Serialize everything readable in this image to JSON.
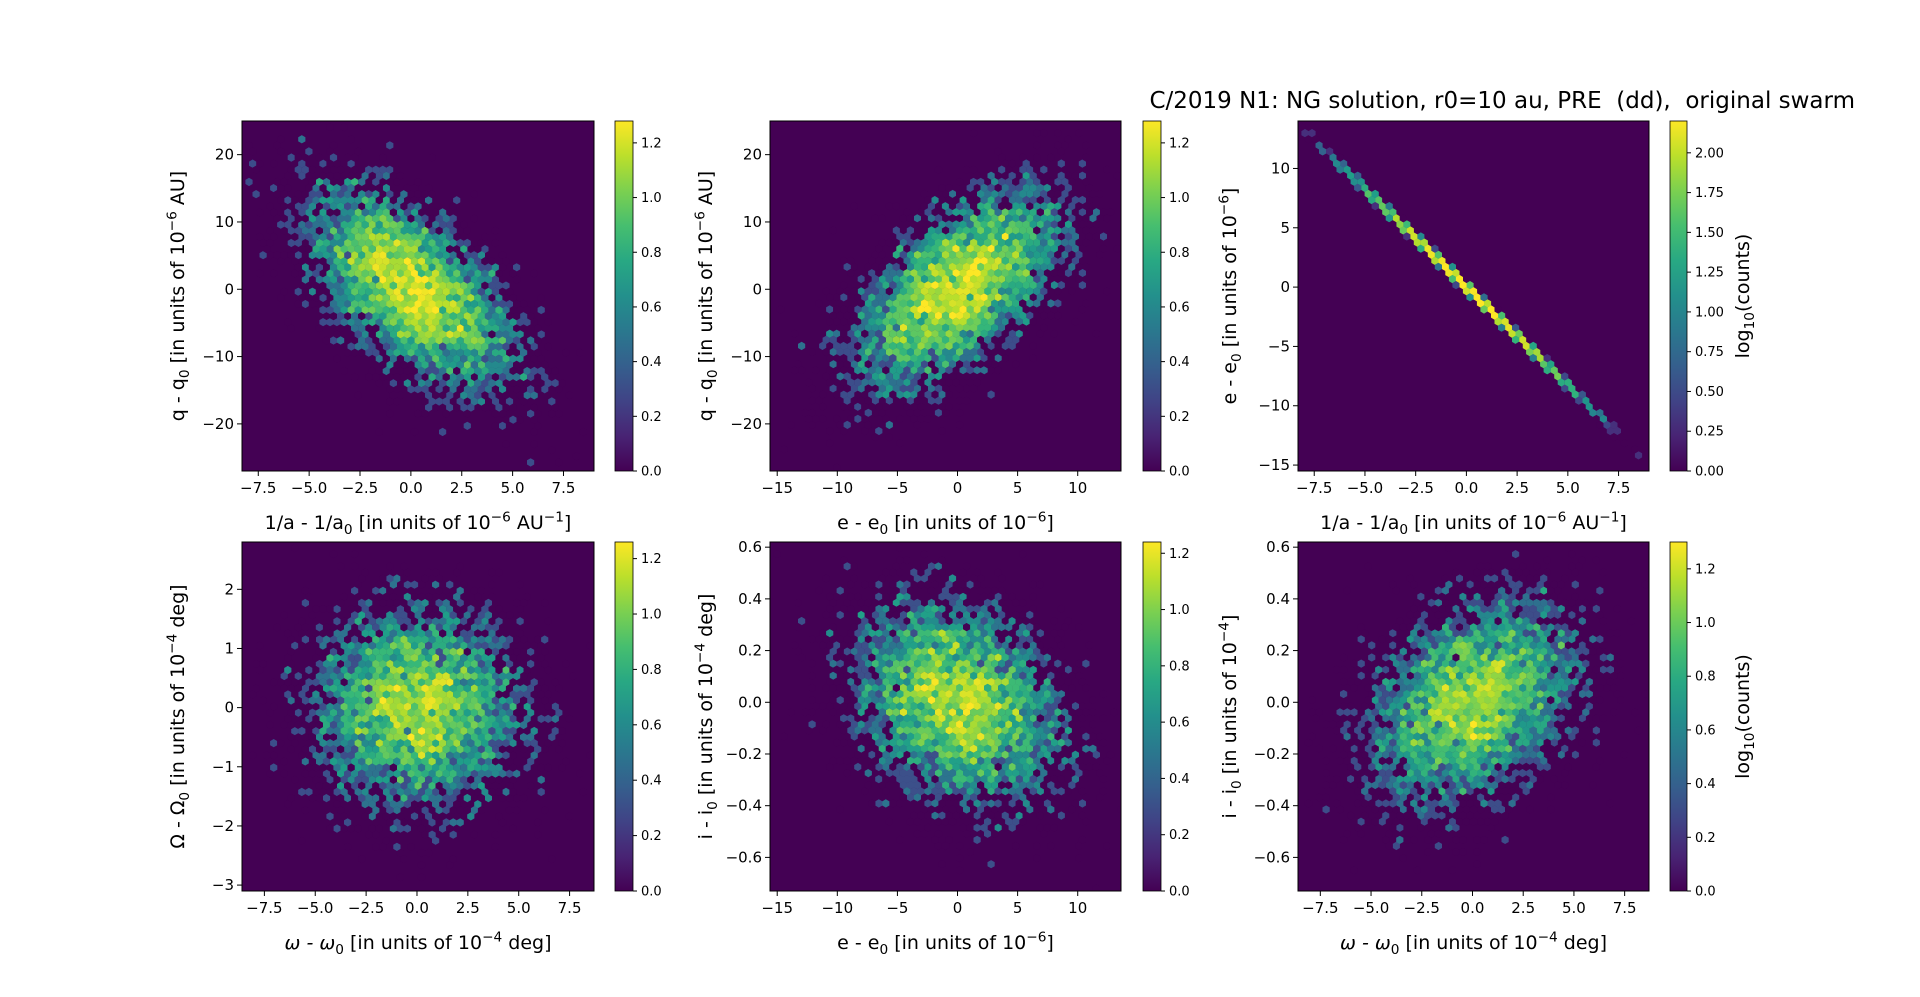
{
  "figure": {
    "title": "C/2019 N1: NG solution, r0=10 au, PRE  (dd),  original swarm"
  },
  "chart_data": [
    {
      "type": "heatmap",
      "subtype": "hexbin",
      "grid": false,
      "xlabel": [
        {
          "t": "1/a - 1/a"
        },
        {
          "t": "0",
          "s": "sub"
        },
        {
          "t": " [in units of 10"
        },
        {
          "t": "−6",
          "s": "sup"
        },
        {
          "t": " AU"
        },
        {
          "t": "−1",
          "s": "sup"
        },
        {
          "t": "]"
        }
      ],
      "ylabel": [
        {
          "t": "q - q"
        },
        {
          "t": "0",
          "s": "sub"
        },
        {
          "t": " [in units of 10"
        },
        {
          "t": "−6",
          "s": "sup"
        },
        {
          "t": " AU]"
        }
      ],
      "xlim": [
        -8.3,
        9.0
      ],
      "ylim": [
        -27,
        25
      ],
      "xticks": [
        -7.5,
        -5.0,
        -2.5,
        0.0,
        2.5,
        5.0,
        7.5
      ],
      "xtick_labels": [
        "−7.5",
        "−5.0",
        "−2.5",
        "0.0",
        "2.5",
        "5.0",
        "7.5"
      ],
      "yticks": [
        -20,
        -10,
        0,
        10,
        20
      ],
      "ytick_labels": [
        "−20",
        "−10",
        "0",
        "10",
        "20"
      ],
      "distribution": {
        "center": [
          0,
          0
        ],
        "spread": [
          2.6,
          7.5
        ],
        "correlation": -0.6
      },
      "colorbar": {
        "range": [
          0,
          1.28
        ],
        "ticks": [
          0,
          0.2,
          0.4,
          0.6,
          0.8,
          1.0,
          1.2
        ],
        "tick_labels": [
          "0.0",
          "0.2",
          "0.4",
          "0.6",
          "0.8",
          "1.0",
          "1.2"
        ],
        "label": null
      }
    },
    {
      "type": "heatmap",
      "subtype": "hexbin",
      "grid": false,
      "xlabel": [
        {
          "t": "e - e"
        },
        {
          "t": "0",
          "s": "sub"
        },
        {
          "t": " [in units of 10"
        },
        {
          "t": "−6",
          "s": "sup"
        },
        {
          "t": "]"
        }
      ],
      "ylabel": [
        {
          "t": "q - q"
        },
        {
          "t": "0",
          "s": "sub"
        },
        {
          "t": " [in units of 10"
        },
        {
          "t": "−6",
          "s": "sup"
        },
        {
          "t": " AU]"
        }
      ],
      "xlim": [
        -15.6,
        13.6
      ],
      "ylim": [
        -27,
        25
      ],
      "xticks": [
        -15,
        -10,
        -5,
        0,
        5,
        10
      ],
      "xtick_labels": [
        "−15",
        "−10",
        "−5",
        "0",
        "5",
        "10"
      ],
      "yticks": [
        -20,
        -10,
        0,
        10,
        20
      ],
      "ytick_labels": [
        "−20",
        "−10",
        "0",
        "10",
        "20"
      ],
      "distribution": {
        "center": [
          0,
          0
        ],
        "spread": [
          4.4,
          7.5
        ],
        "correlation": 0.6
      },
      "colorbar": {
        "range": [
          0,
          1.28
        ],
        "ticks": [
          0,
          0.2,
          0.4,
          0.6,
          0.8,
          1.0,
          1.2
        ],
        "tick_labels": [
          "0.0",
          "0.2",
          "0.4",
          "0.6",
          "0.8",
          "1.0",
          "1.2"
        ],
        "label": null
      }
    },
    {
      "type": "heatmap",
      "subtype": "hexbin",
      "grid": false,
      "xlabel": [
        {
          "t": "1/a - 1/a"
        },
        {
          "t": "0",
          "s": "sub"
        },
        {
          "t": " [in units of 10"
        },
        {
          "t": "−6",
          "s": "sup"
        },
        {
          "t": " AU"
        },
        {
          "t": "−1",
          "s": "sup"
        },
        {
          "t": "]"
        }
      ],
      "ylabel": [
        {
          "t": "e - e"
        },
        {
          "t": "0",
          "s": "sub"
        },
        {
          "t": " [in units of 10"
        },
        {
          "t": "−6",
          "s": "sup"
        },
        {
          "t": "]"
        }
      ],
      "xlim": [
        -8.3,
        9.0
      ],
      "ylim": [
        -15.5,
        14.0
      ],
      "xticks": [
        -7.5,
        -5.0,
        -2.5,
        0.0,
        2.5,
        5.0,
        7.5
      ],
      "xtick_labels": [
        "−7.5",
        "−5.0",
        "−2.5",
        "0.0",
        "2.5",
        "5.0",
        "7.5"
      ],
      "yticks": [
        -15,
        -10,
        -5,
        0,
        5,
        10
      ],
      "ytick_labels": [
        "−15",
        "−10",
        "−5",
        "0",
        "5",
        "10"
      ],
      "distribution": {
        "center": [
          0,
          0
        ],
        "spread": [
          2.6,
          4.3
        ],
        "correlation": -1.0
      },
      "colorbar": {
        "range": [
          0,
          2.2
        ],
        "ticks": [
          0,
          0.25,
          0.5,
          0.75,
          1.0,
          1.25,
          1.5,
          1.75,
          2.0
        ],
        "tick_labels": [
          "0.00",
          "0.25",
          "0.50",
          "0.75",
          "1.00",
          "1.25",
          "1.50",
          "1.75",
          "2.00"
        ],
        "label": [
          {
            "t": "log"
          },
          {
            "t": "10",
            "s": "sub"
          },
          {
            "t": "(counts)"
          }
        ]
      }
    },
    {
      "type": "heatmap",
      "subtype": "hexbin",
      "grid": false,
      "xlabel": [
        {
          "t": "ω - ω",
          "i": true
        },
        {
          "t": "0",
          "s": "sub"
        },
        {
          "t": " [in units of 10"
        },
        {
          "t": "−4",
          "s": "sup"
        },
        {
          "t": " deg]"
        }
      ],
      "ylabel": [
        {
          "t": "Ω - Ω"
        },
        {
          "t": "0",
          "s": "sub"
        },
        {
          "t": " [in units of 10"
        },
        {
          "t": "−4",
          "s": "sup"
        },
        {
          "t": " deg]"
        }
      ],
      "xlim": [
        -8.6,
        8.7
      ],
      "ylim": [
        -3.1,
        2.8
      ],
      "xticks": [
        -7.5,
        -5.0,
        -2.5,
        0.0,
        2.5,
        5.0,
        7.5
      ],
      "xtick_labels": [
        "−7.5",
        "−5.0",
        "−2.5",
        "0.0",
        "2.5",
        "5.0",
        "7.5"
      ],
      "yticks": [
        -3,
        -2,
        -1,
        0,
        1,
        2
      ],
      "ytick_labels": [
        "−3",
        "−2",
        "−1",
        "0",
        "1",
        "2"
      ],
      "distribution": {
        "center": [
          0,
          0
        ],
        "spread": [
          2.6,
          0.85
        ],
        "correlation": 0.0
      },
      "colorbar": {
        "range": [
          0,
          1.26
        ],
        "ticks": [
          0,
          0.2,
          0.4,
          0.6,
          0.8,
          1.0,
          1.2
        ],
        "tick_labels": [
          "0.0",
          "0.2",
          "0.4",
          "0.6",
          "0.8",
          "1.0",
          "1.2"
        ],
        "label": null
      }
    },
    {
      "type": "heatmap",
      "subtype": "hexbin",
      "grid": false,
      "xlabel": [
        {
          "t": "e - e"
        },
        {
          "t": "0",
          "s": "sub"
        },
        {
          "t": " [in units of 10"
        },
        {
          "t": "−6",
          "s": "sup"
        },
        {
          "t": "]"
        }
      ],
      "ylabel": [
        {
          "t": "i - i"
        },
        {
          "t": "0",
          "s": "sub"
        },
        {
          "t": " [in units of 10"
        },
        {
          "t": "−4",
          "s": "sup"
        },
        {
          "t": " deg]"
        }
      ],
      "xlim": [
        -15.6,
        13.6
      ],
      "ylim": [
        -0.73,
        0.62
      ],
      "xticks": [
        -15,
        -10,
        -5,
        0,
        5,
        10
      ],
      "xtick_labels": [
        "−15",
        "−10",
        "−5",
        "0",
        "5",
        "10"
      ],
      "yticks": [
        -0.6,
        -0.4,
        -0.2,
        0.0,
        0.2,
        0.4,
        0.6
      ],
      "ytick_labels": [
        "−0.6",
        "−0.4",
        "−0.2",
        "0.0",
        "0.2",
        "0.4",
        "0.6"
      ],
      "distribution": {
        "center": [
          0,
          0
        ],
        "spread": [
          4.4,
          0.2
        ],
        "correlation": -0.25
      },
      "colorbar": {
        "range": [
          0,
          1.24
        ],
        "ticks": [
          0,
          0.2,
          0.4,
          0.6,
          0.8,
          1.0,
          1.2
        ],
        "tick_labels": [
          "0.0",
          "0.2",
          "0.4",
          "0.6",
          "0.8",
          "1.0",
          "1.2"
        ],
        "label": null
      }
    },
    {
      "type": "heatmap",
      "subtype": "hexbin",
      "grid": false,
      "xlabel": [
        {
          "t": "ω - ω",
          "i": true
        },
        {
          "t": "0",
          "s": "sub"
        },
        {
          "t": " [in units of 10"
        },
        {
          "t": "−4",
          "s": "sup"
        },
        {
          "t": " deg]"
        }
      ],
      "ylabel": [
        {
          "t": "i - i"
        },
        {
          "t": "0",
          "s": "sub"
        },
        {
          "t": " [in units of 10"
        },
        {
          "t": "−4",
          "s": "sup"
        },
        {
          "t": "]"
        }
      ],
      "xlim": [
        -8.6,
        8.7
      ],
      "ylim": [
        -0.73,
        0.62
      ],
      "xticks": [
        -7.5,
        -5.0,
        -2.5,
        0.0,
        2.5,
        5.0,
        7.5
      ],
      "xtick_labels": [
        "−7.5",
        "−5.0",
        "−2.5",
        "0.0",
        "2.5",
        "5.0",
        "7.5"
      ],
      "yticks": [
        -0.6,
        -0.4,
        -0.2,
        0.0,
        0.2,
        0.4,
        0.6
      ],
      "ytick_labels": [
        "−0.6",
        "−0.4",
        "−0.2",
        "0.0",
        "0.2",
        "0.4",
        "0.6"
      ],
      "distribution": {
        "center": [
          0,
          0
        ],
        "spread": [
          2.6,
          0.2
        ],
        "correlation": 0.35
      },
      "colorbar": {
        "range": [
          0,
          1.3
        ],
        "ticks": [
          0,
          0.2,
          0.4,
          0.6,
          0.8,
          1.0,
          1.2
        ],
        "tick_labels": [
          "0.0",
          "0.2",
          "0.4",
          "0.6",
          "0.8",
          "1.0",
          "1.2"
        ],
        "label": [
          {
            "t": "log"
          },
          {
            "t": "10",
            "s": "sub"
          },
          {
            "t": "(counts)"
          }
        ]
      }
    }
  ]
}
